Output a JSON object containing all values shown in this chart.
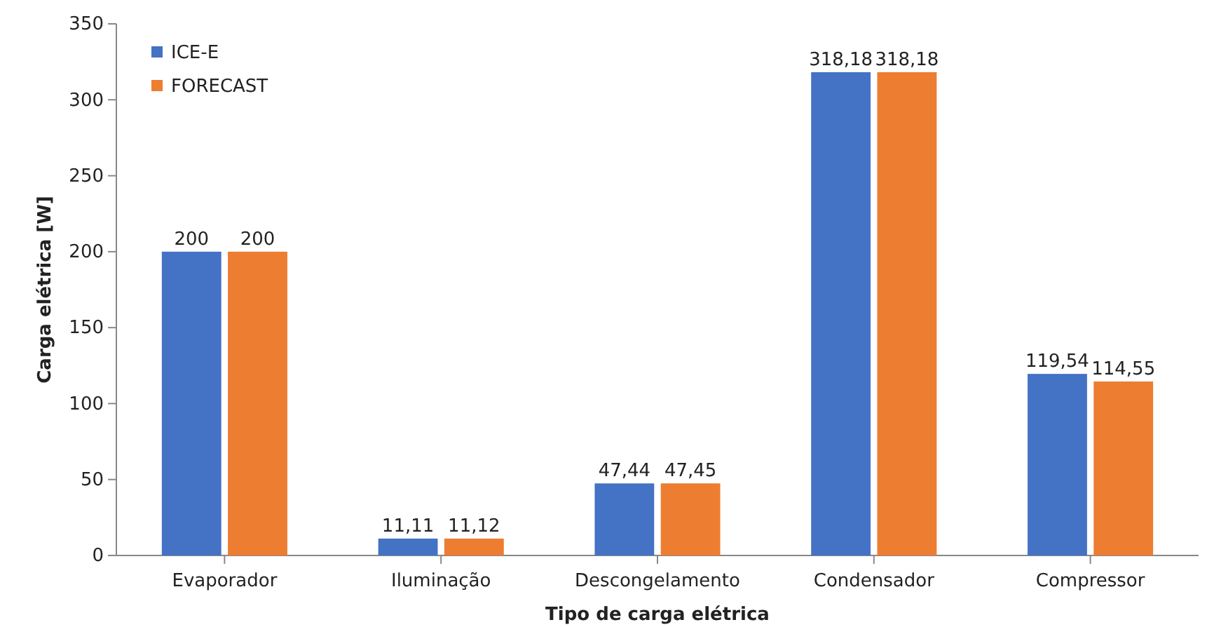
{
  "chart_data": {
    "type": "bar",
    "xlabel": "Tipo de carga elétrica",
    "ylabel": "Carga elétrica [W]",
    "categories": [
      "Evaporador",
      "Iluminação",
      "Descongelamento",
      "Condensador",
      "Compressor"
    ],
    "series": [
      {
        "name": "ICE-E",
        "color": "#4472c4",
        "values": [
          200,
          11.11,
          47.44,
          318.18,
          119.54
        ],
        "value_labels": [
          "200",
          "11,11",
          "47,44",
          "318,18",
          "119,54"
        ]
      },
      {
        "name": "FORECAST",
        "color": "#ed7d31",
        "values": [
          200,
          11.12,
          47.45,
          318.18,
          114.55
        ],
        "value_labels": [
          "200",
          "11,12",
          "47,45",
          "318,18",
          "114,55"
        ]
      }
    ],
    "ylim": [
      0,
      350
    ],
    "yticks": [
      0,
      50,
      100,
      150,
      200,
      250,
      300,
      350
    ],
    "grid": false,
    "legend": "top left"
  }
}
